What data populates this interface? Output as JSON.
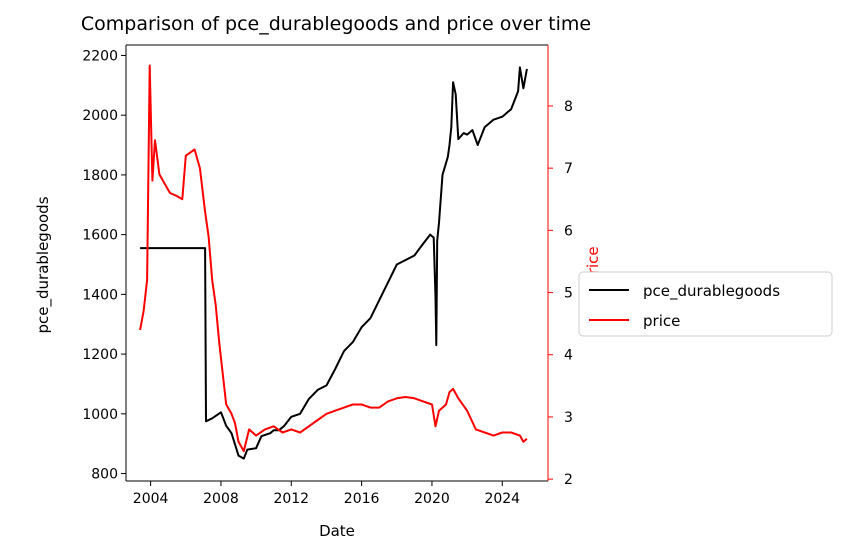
{
  "chart_data": {
    "type": "line",
    "title": "Comparison of pce_durablegoods and price over time",
    "xlabel": "Date",
    "ylabel_left": "pce_durablegoods",
    "ylabel_right": "price",
    "xlim": [
      2002.6,
      2026.6
    ],
    "ylim_left": [
      775,
      2235
    ],
    "ylim_right": [
      1.97,
      8.98
    ],
    "x_ticks": [
      2004,
      2008,
      2012,
      2016,
      2020,
      2024
    ],
    "x_tick_labels": [
      "2004",
      "2008",
      "2012",
      "2016",
      "2020",
      "2024"
    ],
    "y_ticks_left": [
      800,
      1000,
      1200,
      1400,
      1600,
      1800,
      2000,
      2200
    ],
    "y_ticks_right": [
      2,
      3,
      4,
      5,
      6,
      7,
      8
    ],
    "grid": false,
    "legend_position": "right, outside",
    "colors": {
      "left_axis": "#000000",
      "right_axis": "#ff0000"
    },
    "series": [
      {
        "name": "pce_durablegoods",
        "axis": "left",
        "color": "#000000",
        "points": [
          [
            2003.4,
            1555
          ],
          [
            2007.1,
            1555
          ],
          [
            2007.15,
            975
          ],
          [
            2007.5,
            985
          ],
          [
            2008.0,
            1005
          ],
          [
            2008.3,
            960
          ],
          [
            2008.6,
            935
          ],
          [
            2009.0,
            860
          ],
          [
            2009.3,
            850
          ],
          [
            2009.5,
            880
          ],
          [
            2010.0,
            885
          ],
          [
            2010.3,
            925
          ],
          [
            2010.8,
            935
          ],
          [
            2011.0,
            945
          ],
          [
            2011.3,
            945
          ],
          [
            2011.6,
            960
          ],
          [
            2012.0,
            990
          ],
          [
            2012.5,
            1000
          ],
          [
            2013.0,
            1050
          ],
          [
            2013.5,
            1080
          ],
          [
            2014.0,
            1095
          ],
          [
            2014.5,
            1150
          ],
          [
            2015.0,
            1210
          ],
          [
            2015.5,
            1240
          ],
          [
            2016.0,
            1290
          ],
          [
            2016.5,
            1320
          ],
          [
            2017.0,
            1380
          ],
          [
            2017.5,
            1440
          ],
          [
            2018.0,
            1500
          ],
          [
            2018.5,
            1515
          ],
          [
            2019.0,
            1530
          ],
          [
            2019.5,
            1570
          ],
          [
            2019.9,
            1600
          ],
          [
            2020.1,
            1590
          ],
          [
            2020.2,
            1390
          ],
          [
            2020.25,
            1230
          ],
          [
            2020.3,
            1580
          ],
          [
            2020.4,
            1640
          ],
          [
            2020.6,
            1800
          ],
          [
            2020.9,
            1860
          ],
          [
            2021.0,
            1900
          ],
          [
            2021.1,
            1960
          ],
          [
            2021.2,
            2110
          ],
          [
            2021.35,
            2070
          ],
          [
            2021.5,
            1920
          ],
          [
            2021.8,
            1940
          ],
          [
            2022.0,
            1935
          ],
          [
            2022.3,
            1950
          ],
          [
            2022.6,
            1900
          ],
          [
            2023.0,
            1960
          ],
          [
            2023.5,
            1985
          ],
          [
            2024.0,
            1995
          ],
          [
            2024.5,
            2020
          ],
          [
            2024.9,
            2080
          ],
          [
            2025.0,
            2160
          ],
          [
            2025.2,
            2090
          ],
          [
            2025.4,
            2155
          ]
        ]
      },
      {
        "name": "price",
        "axis": "right",
        "color": "#ff0000",
        "points": [
          [
            2003.4,
            4.4
          ],
          [
            2003.6,
            4.7
          ],
          [
            2003.8,
            5.2
          ],
          [
            2003.95,
            8.65
          ],
          [
            2004.1,
            6.8
          ],
          [
            2004.25,
            7.45
          ],
          [
            2004.5,
            6.9
          ],
          [
            2004.8,
            6.75
          ],
          [
            2005.1,
            6.6
          ],
          [
            2005.5,
            6.55
          ],
          [
            2005.8,
            6.5
          ],
          [
            2006.0,
            7.2
          ],
          [
            2006.5,
            7.3
          ],
          [
            2006.8,
            7.0
          ],
          [
            2007.1,
            6.3
          ],
          [
            2007.3,
            5.9
          ],
          [
            2007.5,
            5.2
          ],
          [
            2007.7,
            4.8
          ],
          [
            2007.9,
            4.2
          ],
          [
            2008.1,
            3.7
          ],
          [
            2008.3,
            3.2
          ],
          [
            2008.6,
            3.05
          ],
          [
            2008.8,
            2.9
          ],
          [
            2009.0,
            2.6
          ],
          [
            2009.3,
            2.45
          ],
          [
            2009.6,
            2.8
          ],
          [
            2010.0,
            2.7
          ],
          [
            2010.5,
            2.8
          ],
          [
            2011.0,
            2.85
          ],
          [
            2011.5,
            2.75
          ],
          [
            2012.0,
            2.8
          ],
          [
            2012.5,
            2.75
          ],
          [
            2013.0,
            2.85
          ],
          [
            2013.5,
            2.95
          ],
          [
            2014.0,
            3.05
          ],
          [
            2014.5,
            3.1
          ],
          [
            2015.0,
            3.15
          ],
          [
            2015.5,
            3.2
          ],
          [
            2016.0,
            3.2
          ],
          [
            2016.5,
            3.15
          ],
          [
            2017.0,
            3.15
          ],
          [
            2017.5,
            3.25
          ],
          [
            2018.0,
            3.3
          ],
          [
            2018.5,
            3.32
          ],
          [
            2019.0,
            3.3
          ],
          [
            2019.5,
            3.25
          ],
          [
            2020.0,
            3.2
          ],
          [
            2020.2,
            2.85
          ],
          [
            2020.4,
            3.1
          ],
          [
            2020.8,
            3.2
          ],
          [
            2021.0,
            3.4
          ],
          [
            2021.2,
            3.45
          ],
          [
            2021.5,
            3.3
          ],
          [
            2022.0,
            3.1
          ],
          [
            2022.5,
            2.8
          ],
          [
            2023.0,
            2.75
          ],
          [
            2023.5,
            2.7
          ],
          [
            2024.0,
            2.75
          ],
          [
            2024.5,
            2.75
          ],
          [
            2025.0,
            2.7
          ],
          [
            2025.2,
            2.6
          ],
          [
            2025.4,
            2.65
          ]
        ]
      }
    ]
  }
}
